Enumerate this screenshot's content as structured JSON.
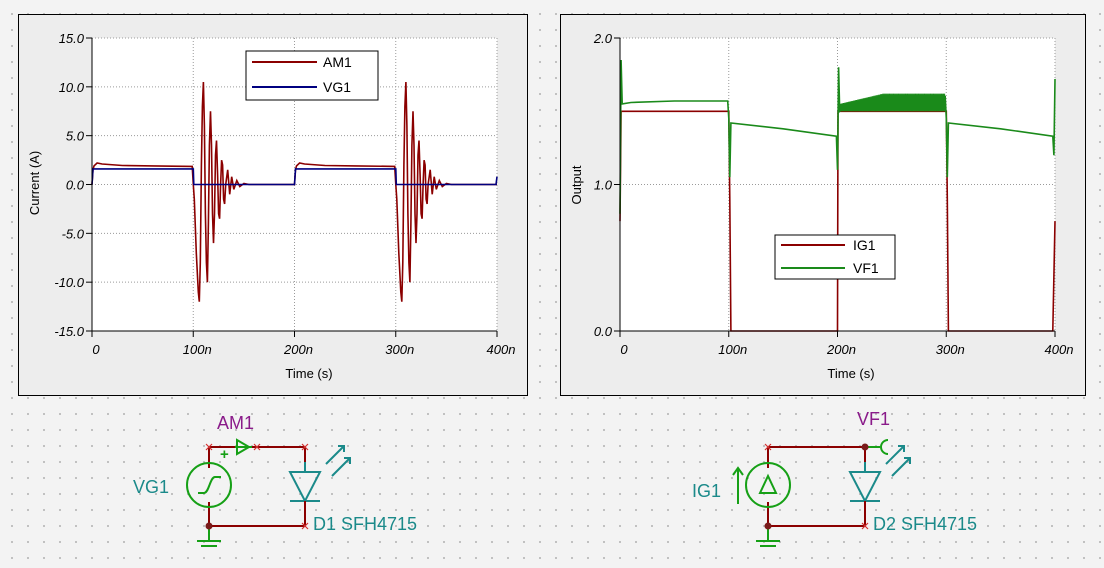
{
  "colors": {
    "am1": "#8b0000",
    "vg1": "#000080",
    "ig1": "#8b0000",
    "vf1": "#1a8a1a",
    "component": "#16a016",
    "wire": "#8b0000",
    "label_teal": "#1b8a8a",
    "label_purple": "#8a1b8a"
  },
  "chart_data": [
    {
      "type": "line",
      "title": "",
      "xlabel": "Time (s)",
      "ylabel": "Current (A)",
      "xlim": [
        0,
        400
      ],
      "ylim": [
        -15,
        15
      ],
      "x_ticks": [
        "0",
        "100n",
        "200n",
        "300n",
        "400n"
      ],
      "y_ticks": [
        "15.0",
        "10.0",
        "5.0",
        "0.0",
        "-5.0",
        "-10.0",
        "-15.0"
      ],
      "grid": true,
      "legend_position": "top-right",
      "series": [
        {
          "name": "AM1",
          "color": "#8b0000",
          "points": [
            [
              0,
              0
            ],
            [
              1,
              1.5
            ],
            [
              2,
              1.9
            ],
            [
              5,
              2.2
            ],
            [
              10,
              2.1
            ],
            [
              30,
              1.95
            ],
            [
              60,
              1.9
            ],
            [
              99,
              1.85
            ],
            [
              100,
              0
            ],
            [
              101,
              -1.5
            ],
            [
              103,
              -7
            ],
            [
              105,
              -11
            ],
            [
              106,
              -12
            ],
            [
              107,
              -8
            ],
            [
              108,
              2
            ],
            [
              109,
              8
            ],
            [
              110,
              10.5
            ],
            [
              111,
              6
            ],
            [
              112,
              -3
            ],
            [
              113,
              -8
            ],
            [
              114,
              -10
            ],
            [
              115,
              -4
            ],
            [
              116,
              4
            ],
            [
              117,
              7.5
            ],
            [
              118,
              4
            ],
            [
              119,
              -3
            ],
            [
              120,
              -6
            ],
            [
              121,
              -3
            ],
            [
              122,
              3
            ],
            [
              123,
              4.5
            ],
            [
              124,
              1
            ],
            [
              125,
              -3
            ],
            [
              126,
              -3.5
            ],
            [
              127,
              0
            ],
            [
              128,
              2.5
            ],
            [
              129,
              2
            ],
            [
              130,
              -1.5
            ],
            [
              131,
              -2
            ],
            [
              132,
              0
            ],
            [
              134,
              1.5
            ],
            [
              136,
              -1
            ],
            [
              138,
              0.8
            ],
            [
              140,
              -0.5
            ],
            [
              143,
              0.4
            ],
            [
              146,
              -0.2
            ],
            [
              150,
              0.1
            ],
            [
              155,
              0
            ],
            [
              200,
              0
            ],
            [
              201,
              1.5
            ],
            [
              202,
              1.9
            ],
            [
              205,
              2.2
            ],
            [
              210,
              2.1
            ],
            [
              230,
              1.95
            ],
            [
              260,
              1.9
            ],
            [
              299,
              1.85
            ],
            [
              300,
              0
            ],
            [
              301,
              -1.5
            ],
            [
              303,
              -7
            ],
            [
              305,
              -11
            ],
            [
              306,
              -12
            ],
            [
              307,
              -8
            ],
            [
              308,
              2
            ],
            [
              309,
              8
            ],
            [
              310,
              10.5
            ],
            [
              311,
              6
            ],
            [
              312,
              -3
            ],
            [
              313,
              -8
            ],
            [
              314,
              -10
            ],
            [
              315,
              -4
            ],
            [
              316,
              4
            ],
            [
              317,
              7.5
            ],
            [
              318,
              4
            ],
            [
              319,
              -3
            ],
            [
              320,
              -6
            ],
            [
              321,
              -3
            ],
            [
              322,
              3
            ],
            [
              323,
              4.5
            ],
            [
              324,
              1
            ],
            [
              325,
              -3
            ],
            [
              326,
              -3.5
            ],
            [
              327,
              0
            ],
            [
              328,
              2.5
            ],
            [
              329,
              2
            ],
            [
              330,
              -1.5
            ],
            [
              331,
              -2
            ],
            [
              332,
              0
            ],
            [
              334,
              1.5
            ],
            [
              336,
              -1
            ],
            [
              338,
              0.8
            ],
            [
              340,
              -0.5
            ],
            [
              343,
              0.4
            ],
            [
              346,
              -0.2
            ],
            [
              350,
              0.1
            ],
            [
              355,
              0
            ],
            [
              400,
              0
            ]
          ]
        },
        {
          "name": "VG1",
          "color": "#000080",
          "points": [
            [
              0,
              0
            ],
            [
              1,
              1.6
            ],
            [
              100,
              1.6
            ],
            [
              100.5,
              0
            ],
            [
              200,
              0
            ],
            [
              201,
              1.6
            ],
            [
              300,
              1.6
            ],
            [
              300.5,
              0
            ],
            [
              399,
              0
            ],
            [
              400,
              0.8
            ]
          ]
        }
      ]
    },
    {
      "type": "line",
      "title": "",
      "xlabel": "Time (s)",
      "ylabel": "Output",
      "xlim": [
        0,
        400
      ],
      "ylim": [
        0,
        2
      ],
      "x_ticks": [
        "0",
        "100n",
        "200n",
        "300n",
        "400n"
      ],
      "y_ticks": [
        "2.0",
        "1.0",
        "0.0"
      ],
      "grid": true,
      "legend_position": "bottom-center",
      "series": [
        {
          "name": "IG1",
          "color": "#8b0000",
          "points": [
            [
              0,
              0.75
            ],
            [
              1,
              1.5
            ],
            [
              100,
              1.5
            ],
            [
              101,
              0.9
            ],
            [
              102,
              0
            ],
            [
              200,
              0
            ],
            [
              200.5,
              1.5
            ],
            [
              300,
              1.5
            ],
            [
              301,
              0.9
            ],
            [
              302,
              0
            ],
            [
              398,
              0
            ],
            [
              400,
              0.75
            ]
          ]
        },
        {
          "name": "VF1",
          "color": "#1a8a1a",
          "points": [
            [
              0,
              0.8
            ],
            [
              1,
              1.85
            ],
            [
              2,
              1.55
            ],
            [
              10,
              1.56
            ],
            [
              50,
              1.57
            ],
            [
              99,
              1.57
            ],
            [
              100,
              1.45
            ],
            [
              101,
              1.05
            ],
            [
              102,
              1.42
            ],
            [
              150,
              1.38
            ],
            [
              199,
              1.33
            ],
            [
              200,
              1.1
            ],
            [
              201,
              1.8
            ],
            [
              202,
              1.5
            ],
            [
              210,
              1.55
            ],
            [
              250,
              1.58
            ],
            [
              299,
              1.6
            ],
            [
              300,
              1.45
            ],
            [
              301,
              1.05
            ],
            [
              302,
              1.42
            ],
            [
              350,
              1.38
            ],
            [
              398,
              1.33
            ],
            [
              399,
              1.2
            ],
            [
              400,
              1.72
            ]
          ]
        }
      ]
    }
  ],
  "schematic": {
    "left": {
      "ammeter_label": "AM1",
      "source_label": "VG1",
      "plus_sign": "+",
      "diode_label": "D1 SFH4715"
    },
    "right": {
      "voltmeter_label": "VF1",
      "source_label": "IG1",
      "diode_label": "D2 SFH4715"
    }
  }
}
